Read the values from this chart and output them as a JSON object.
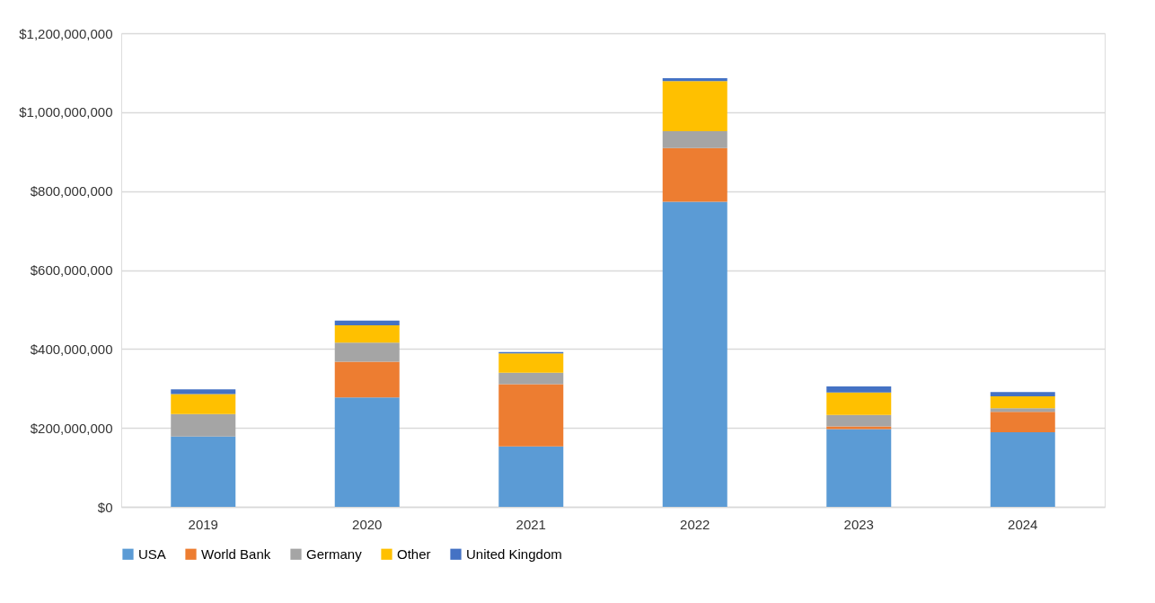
{
  "chart_data": {
    "type": "bar",
    "stacked": true,
    "categories": [
      "2019",
      "2020",
      "2021",
      "2022",
      "2023",
      "2024"
    ],
    "series": [
      {
        "name": "USA",
        "color": "#5b9bd5",
        "values": [
          178000000,
          277000000,
          153000000,
          773000000,
          197000000,
          189000000
        ]
      },
      {
        "name": "World Bank",
        "color": "#ed7d31",
        "values": [
          0,
          91000000,
          158000000,
          136000000,
          7000000,
          52000000
        ]
      },
      {
        "name": "Germany",
        "color": "#a5a5a5",
        "values": [
          57000000,
          48000000,
          29000000,
          43000000,
          29000000,
          9000000
        ]
      },
      {
        "name": "Other",
        "color": "#ffc000",
        "values": [
          51000000,
          44000000,
          49000000,
          127000000,
          57000000,
          30000000
        ]
      },
      {
        "name": "United Kingdom",
        "color": "#4472c4",
        "values": [
          12000000,
          12000000,
          3000000,
          7000000,
          15000000,
          11000000
        ]
      }
    ],
    "ylim": [
      0,
      1200000000
    ],
    "yticks": [
      {
        "value": 0,
        "label": "$0"
      },
      {
        "value": 200000000,
        "label": "$200,000,000"
      },
      {
        "value": 400000000,
        "label": "$400,000,000"
      },
      {
        "value": 600000000,
        "label": "$600,000,000"
      },
      {
        "value": 800000000,
        "label": "$800,000,000"
      },
      {
        "value": 1000000000,
        "label": "$1,000,000,000"
      },
      {
        "value": 1200000000,
        "label": "$1,200,000,000"
      }
    ],
    "grid": "y",
    "legend": "bottom"
  }
}
